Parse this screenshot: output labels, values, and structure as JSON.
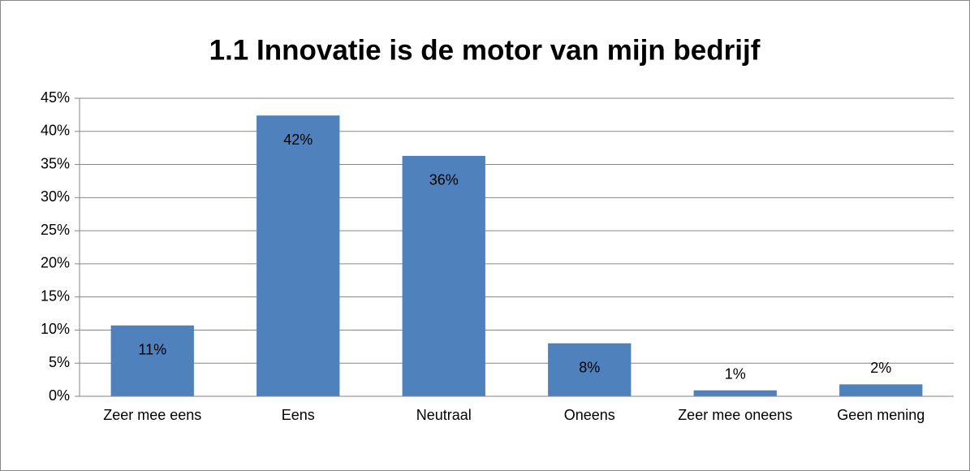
{
  "chart_data": {
    "type": "bar",
    "title": "1.1 Innovatie is de motor van mijn bedrijf",
    "categories": [
      "Zeer mee eens",
      "Eens",
      "Neutraal",
      "Oneens",
      "Zeer mee oneens",
      "Geen mening"
    ],
    "values": [
      10.7,
      42.4,
      36.3,
      8.0,
      0.9,
      1.8
    ],
    "value_labels": [
      "11%",
      "42%",
      "36%",
      "8%",
      "1%",
      "2%"
    ],
    "color": "#4f81bd",
    "ylim": [
      0,
      45
    ],
    "yticks": [
      {
        "value": 0,
        "label": "0%"
      },
      {
        "value": 5,
        "label": "5%"
      },
      {
        "value": 10,
        "label": "10%"
      },
      {
        "value": 15,
        "label": "15%"
      },
      {
        "value": 20,
        "label": "20%"
      },
      {
        "value": 25,
        "label": "25%"
      },
      {
        "value": 30,
        "label": "30%"
      },
      {
        "value": 35,
        "label": "35%"
      },
      {
        "value": 40,
        "label": "40%"
      },
      {
        "value": 45,
        "label": "45%"
      }
    ],
    "grid": true
  }
}
